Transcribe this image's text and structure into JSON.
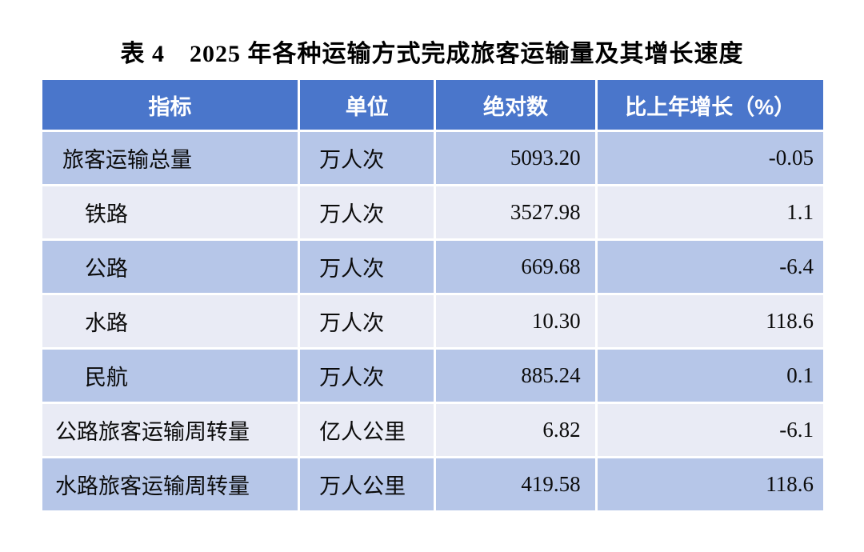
{
  "colors": {
    "header_bg": "#4A76CB",
    "header_text": "#FFFFFF",
    "row_band_dark": "#B6C6E8",
    "row_band_light": "#E9EBF5",
    "body_text": "#0B0B0B",
    "page_bg": "#FFFFFF"
  },
  "chart_data": {
    "type": "table",
    "title": "表 4　2025 年各种运输方式完成旅客运输量及其增长速度",
    "columns": [
      "指标",
      "单位",
      "绝对数",
      "比上年增长（%）"
    ],
    "rows": [
      {
        "indicator": "旅客运输总量",
        "unit": "万人次",
        "absolute": "5093.20",
        "growth": "-0.05"
      },
      {
        "indicator": "铁路",
        "unit": "万人次",
        "absolute": "3527.98",
        "growth": "1.1"
      },
      {
        "indicator": "公路",
        "unit": "万人次",
        "absolute": "669.68",
        "growth": "-6.4"
      },
      {
        "indicator": "水路",
        "unit": "万人次",
        "absolute": "10.30",
        "growth": "118.6"
      },
      {
        "indicator": "民航",
        "unit": "万人次",
        "absolute": "885.24",
        "growth": "0.1"
      },
      {
        "indicator": "公路旅客运输周转量",
        "unit": "亿人公里",
        "absolute": "6.82",
        "growth": "-6.1"
      },
      {
        "indicator": "水路旅客运输周转量",
        "unit": "万人公里",
        "absolute": "419.58",
        "growth": "118.6"
      }
    ]
  }
}
